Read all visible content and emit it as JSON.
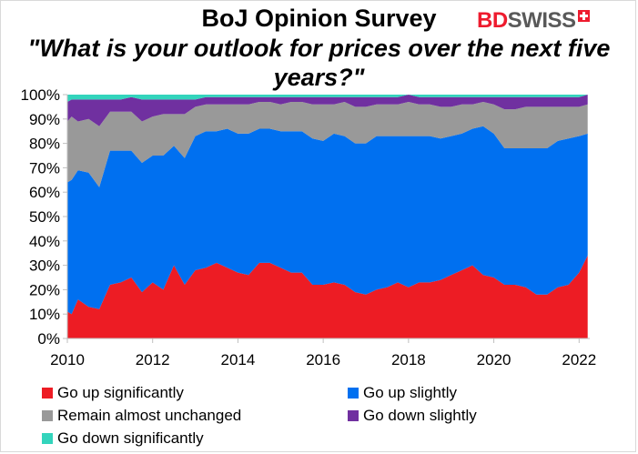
{
  "title": "BoJ Opinion Survey",
  "subtitle": "\"What is your outlook for prices over the next five years?\"",
  "logo": {
    "bd": "BD",
    "swiss": "SWISS",
    "name": "BDSwiss"
  },
  "colors": {
    "go_up_significantly": "#ed1c24",
    "go_up_slightly": "#0070f0",
    "remain_almost_unchanged": "#999999",
    "go_down_slightly": "#7030a0",
    "go_down_significantly": "#33d4bc",
    "brand_red": "#ee1b2e",
    "brand_grey": "#595959"
  },
  "chart_data": {
    "type": "area",
    "stacked": true,
    "grid": false,
    "legend_position": "bottom",
    "xlim": [
      2010,
      2022.25
    ],
    "ylim": [
      0,
      100
    ],
    "x_ticks": [
      2010,
      2012,
      2014,
      2016,
      2018,
      2020,
      2022
    ],
    "x_tick_labels": [
      "2010",
      "2012",
      "2014",
      "2016",
      "2018",
      "2020",
      "2022"
    ],
    "y_ticks": [
      0,
      10,
      20,
      30,
      40,
      50,
      60,
      70,
      80,
      90,
      100
    ],
    "y_tick_labels": [
      "0%",
      "10%",
      "20%",
      "30%",
      "40%",
      "50%",
      "60%",
      "70%",
      "80%",
      "90%",
      "100%"
    ],
    "x": [
      2010.0,
      2010.1,
      2010.25,
      2010.5,
      2010.75,
      2011.0,
      2011.25,
      2011.5,
      2011.75,
      2012.0,
      2012.25,
      2012.5,
      2012.75,
      2013.0,
      2013.25,
      2013.5,
      2013.75,
      2014.0,
      2014.25,
      2014.5,
      2014.75,
      2015.0,
      2015.25,
      2015.5,
      2015.75,
      2016.0,
      2016.25,
      2016.5,
      2016.75,
      2017.0,
      2017.25,
      2017.5,
      2017.75,
      2018.0,
      2018.25,
      2018.5,
      2018.75,
      2019.0,
      2019.25,
      2019.5,
      2019.75,
      2020.0,
      2020.25,
      2020.5,
      2020.75,
      2021.0,
      2021.25,
      2021.5,
      2021.75,
      2022.0,
      2022.2
    ],
    "series": [
      {
        "name": "Go up significantly",
        "key": "go_up_significantly",
        "values": [
          11,
          10,
          16,
          13,
          12,
          22,
          23,
          25,
          19,
          23,
          20,
          30,
          22,
          28,
          29,
          31,
          29,
          27,
          26,
          31,
          31,
          29,
          27,
          27,
          22,
          22,
          23,
          22,
          19,
          18,
          20,
          21,
          23,
          21,
          23,
          23,
          24,
          26,
          28,
          30,
          26,
          25,
          22,
          22,
          21,
          18,
          18,
          21,
          22,
          27,
          34
        ]
      },
      {
        "name": "Go up slightly",
        "key": "go_up_slightly",
        "values": [
          53,
          55,
          53,
          55,
          50,
          55,
          54,
          52,
          53,
          52,
          55,
          49,
          52,
          55,
          56,
          54,
          57,
          57,
          58,
          55,
          55,
          56,
          58,
          58,
          60,
          59,
          61,
          61,
          61,
          62,
          63,
          62,
          60,
          62,
          60,
          60,
          58,
          57,
          56,
          56,
          61,
          59,
          56,
          56,
          57,
          60,
          60,
          60,
          60,
          56,
          50
        ]
      },
      {
        "name": "Remain almost unchanged",
        "key": "remain_almost_unchanged",
        "values": [
          25,
          26,
          20,
          22,
          25,
          16,
          16,
          16,
          17,
          16,
          17,
          13,
          18,
          12,
          11,
          11,
          10,
          12,
          12,
          11,
          11,
          11,
          12,
          12,
          14,
          15,
          12,
          14,
          15,
          15,
          13,
          13,
          13,
          14,
          13,
          13,
          13,
          12,
          12,
          10,
          10,
          12,
          16,
          16,
          17,
          17,
          17,
          14,
          13,
          12,
          12
        ]
      },
      {
        "name": "Go down slightly",
        "key": "go_down_slightly",
        "values": [
          8,
          7,
          9,
          8,
          11,
          5,
          5,
          6,
          9,
          7,
          6,
          6,
          6,
          3,
          3,
          3,
          3,
          3,
          3,
          2,
          2,
          3,
          2,
          2,
          3,
          3,
          3,
          2,
          4,
          4,
          3,
          3,
          3,
          3,
          3,
          3,
          4,
          4,
          3,
          3,
          2,
          3,
          5,
          5,
          4,
          4,
          4,
          4,
          4,
          4,
          4
        ]
      },
      {
        "name": "Go down significantly",
        "key": "go_down_significantly",
        "values": [
          3,
          2,
          2,
          2,
          2,
          2,
          2,
          1,
          2,
          2,
          2,
          2,
          2,
          2,
          1,
          1,
          1,
          1,
          1,
          1,
          1,
          1,
          1,
          1,
          1,
          1,
          1,
          1,
          1,
          1,
          1,
          1,
          1,
          0,
          1,
          1,
          1,
          1,
          1,
          1,
          1,
          1,
          1,
          1,
          1,
          1,
          1,
          1,
          1,
          1,
          0
        ]
      }
    ]
  }
}
